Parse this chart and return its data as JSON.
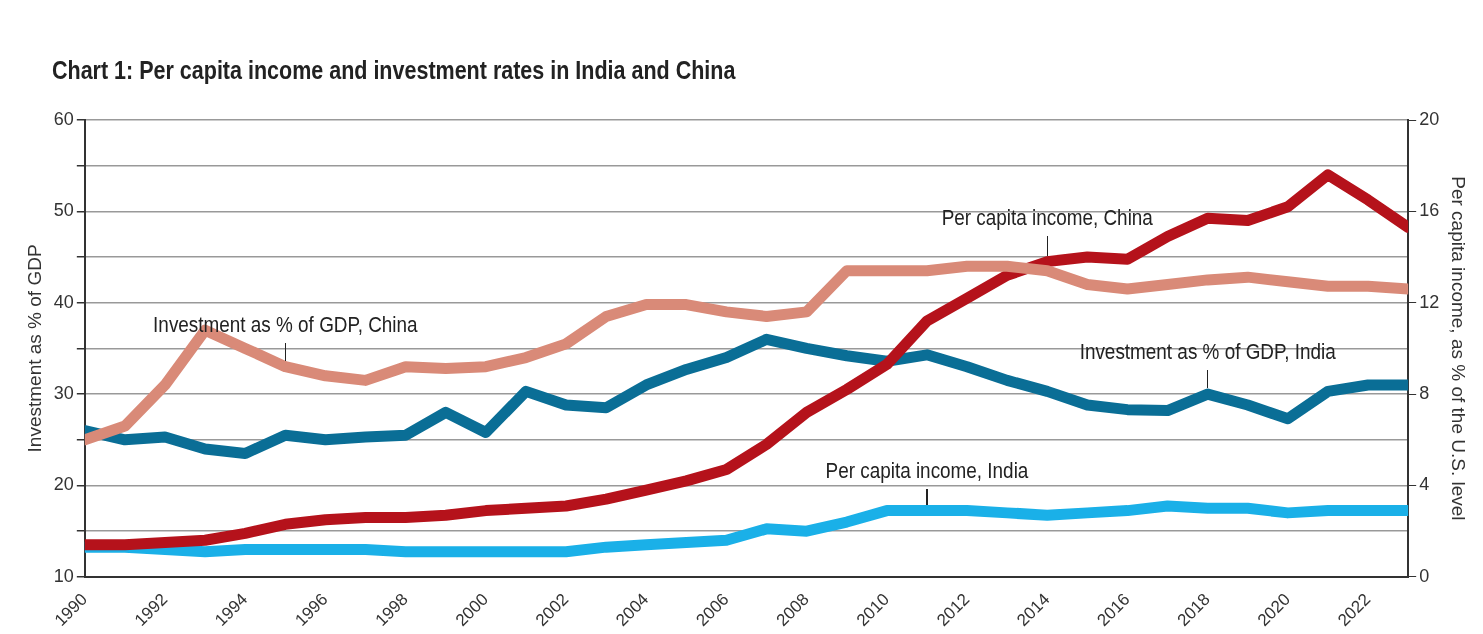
{
  "chart_data": {
    "type": "line",
    "title": "Chart 1: Per capita income and investment rates in India and China",
    "ylabel": "Investment as % of GDP",
    "y2label": "Per capita income, as % of the U.S. level",
    "x": [
      1990,
      1991,
      1992,
      1993,
      1994,
      1995,
      1996,
      1997,
      1998,
      1999,
      2000,
      2001,
      2002,
      2003,
      2004,
      2005,
      2006,
      2007,
      2008,
      2009,
      2010,
      2011,
      2012,
      2013,
      2014,
      2015,
      2016,
      2017,
      2018,
      2019,
      2020,
      2021,
      2022,
      2023
    ],
    "xlim": [
      1990,
      2023
    ],
    "xticks": [
      1990,
      1992,
      1994,
      1996,
      1998,
      2000,
      2002,
      2004,
      2006,
      2008,
      2010,
      2012,
      2014,
      2016,
      2018,
      2020,
      2022
    ],
    "ylim": [
      10,
      60
    ],
    "yticks": [
      10,
      {
        "value": 15,
        "label": null
      },
      20,
      {
        "value": 25,
        "label": null
      },
      30,
      {
        "value": 35,
        "label": null
      },
      40,
      {
        "value": 45,
        "label": null
      },
      50,
      {
        "value": 55,
        "label": null
      },
      60
    ],
    "y2lim": [
      0,
      20
    ],
    "y2ticks": [
      0,
      4,
      8,
      12,
      16,
      20
    ],
    "grid": "y",
    "legend": false,
    "line_style": "solid",
    "series": [
      {
        "name": "Investment as % of GDP, China",
        "color": "#d98a78",
        "values": [
          25,
          26.5,
          31,
          37,
          35,
          33,
          32,
          31.5,
          33,
          32.8,
          33,
          34,
          35.5,
          38.5,
          39.8,
          39.8,
          39,
          38.5,
          39,
          43.5,
          43.5,
          43.5,
          44,
          44,
          43.5,
          42,
          41.5,
          42,
          42.5,
          42.8,
          42.3,
          41.8,
          41.8,
          41.5
        ]
      },
      {
        "name": "Per capita income, China",
        "color": "#b5121b",
        "axis": "y2",
        "values": [
          1.4,
          1.4,
          1.5,
          1.6,
          1.9,
          2.3,
          2.5,
          2.6,
          2.6,
          2.7,
          2.9,
          3.0,
          3.1,
          3.4,
          3.8,
          4.2,
          4.7,
          5.8,
          7.2,
          8.2,
          9.3,
          11.2,
          12.2,
          13.2,
          13.8,
          14.0,
          13.9,
          14.9,
          15.7,
          15.6,
          16.2,
          17.6,
          16.5,
          15.3
        ]
      },
      {
        "name": "Investment as % of GDP, India",
        "color": "#0a6e96",
        "values": [
          26,
          25,
          25.3,
          24,
          23.5,
          25.5,
          25,
          25.3,
          25.5,
          28,
          25.8,
          30.3,
          28.8,
          28.5,
          31,
          32.7,
          34,
          36,
          35,
          34.2,
          33.6,
          34.3,
          33,
          31.5,
          30.3,
          28.8,
          28.3,
          28.2,
          30,
          28.8,
          27.3,
          30.3,
          31,
          31
        ]
      },
      {
        "name": "Per capita income, India",
        "color": "#1ab0e8",
        "axis": "y2",
        "values": [
          1.3,
          1.3,
          1.2,
          1.1,
          1.2,
          1.2,
          1.2,
          1.2,
          1.1,
          1.1,
          1.1,
          1.1,
          1.1,
          1.3,
          1.4,
          1.5,
          1.6,
          2.1,
          2.0,
          2.4,
          2.9,
          2.9,
          2.9,
          2.8,
          2.7,
          2.8,
          2.9,
          3.1,
          3.0,
          3.0,
          2.8,
          2.9,
          2.9,
          2.9
        ]
      }
    ]
  }
}
